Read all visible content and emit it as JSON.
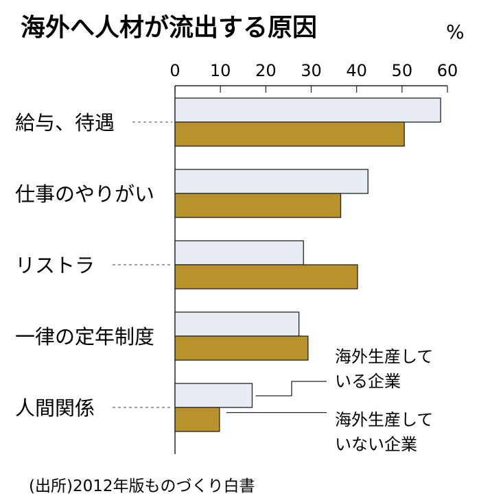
{
  "chart_data": {
    "type": "bar",
    "orientation": "horizontal",
    "title": "海外へ人材が流出する原因",
    "unit": "%",
    "xlim": [
      0,
      60
    ],
    "ticks": [
      "0",
      "10",
      "20",
      "30",
      "40",
      "50",
      "60"
    ],
    "categories": [
      "給与、待遇",
      "仕事のやりがい",
      "リストラ",
      "一律の定年制度",
      "人間関係"
    ],
    "series": [
      {
        "name": "海外生産している企業",
        "name_lines": [
          "海外生産して",
          "いる企業"
        ],
        "color": "#e6ecf2",
        "values": [
          58.5,
          42.5,
          28.3,
          27.3,
          17.0
        ]
      },
      {
        "name": "海外生産していない企業",
        "name_lines": [
          "海外生産して",
          "いない企業"
        ],
        "color": "#b8922a",
        "values": [
          50.5,
          36.5,
          40.2,
          29.3,
          9.8
        ]
      }
    ],
    "source": "(出所)2012年版ものづくり白書",
    "grid": false,
    "legend_placement": "right-bottom"
  }
}
